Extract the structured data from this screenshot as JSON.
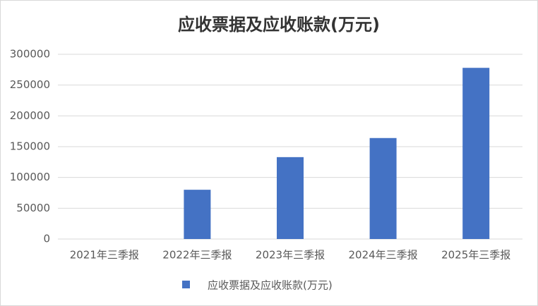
{
  "chart_data": {
    "type": "bar",
    "title": "应收票据及应收账款(万元)",
    "categories": [
      "2021年三季报",
      "2022年三季报",
      "2023年三季报",
      "2024年三季报",
      "2025年三季报"
    ],
    "series": [
      {
        "name": "应收票据及应收账款(万元)",
        "color": "#4472c4",
        "values": [
          0,
          80000,
          133000,
          164000,
          278000
        ]
      }
    ],
    "ylim": [
      0,
      300000
    ],
    "yticks": [
      0,
      50000,
      100000,
      150000,
      200000,
      250000,
      300000
    ],
    "grid": true,
    "legend": "bottom"
  }
}
